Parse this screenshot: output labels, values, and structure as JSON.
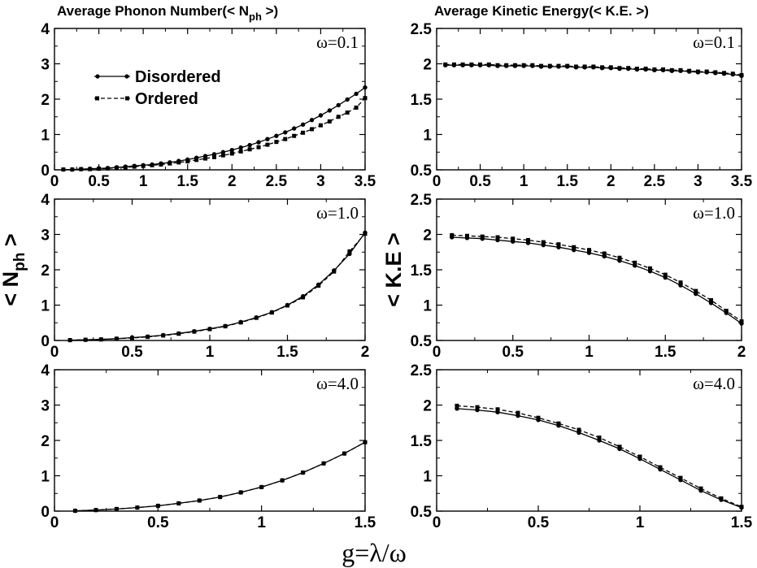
{
  "titles": {
    "left": "Average Phonon Number(< N",
    "left_sub": "ph",
    "left_end": " >)",
    "right": "Average Kinetic Energy(< K.E. >)"
  },
  "axis_labels": {
    "left_y": "< N",
    "left_y_sub": "ph",
    "left_y_end": " >",
    "right_y": "< K.E >",
    "x": "g=λ/ω"
  },
  "legend": {
    "disordered": "Disordered",
    "ordered": "Ordered"
  },
  "chart_data": [
    {
      "id": "nph_w01",
      "type": "line",
      "annotation": "ω=0.1",
      "xlim": [
        0,
        3.5
      ],
      "ylim": [
        0,
        4
      ],
      "xticks": [
        "0",
        "0.5",
        "1",
        "1.5",
        "2",
        "2.5",
        "3",
        "3.5"
      ],
      "yticks": [
        "0",
        "1",
        "2",
        "3",
        "4"
      ],
      "x": [
        0.1,
        0.2,
        0.3,
        0.4,
        0.5,
        0.6,
        0.7,
        0.8,
        0.9,
        1.0,
        1.1,
        1.2,
        1.3,
        1.4,
        1.5,
        1.6,
        1.7,
        1.8,
        1.9,
        2.0,
        2.1,
        2.2,
        2.3,
        2.4,
        2.5,
        2.6,
        2.7,
        2.8,
        2.9,
        3.0,
        3.1,
        3.2,
        3.3,
        3.4,
        3.5
      ],
      "series": [
        {
          "name": "Disordered",
          "values": [
            0.01,
            0.01,
            0.02,
            0.03,
            0.04,
            0.05,
            0.07,
            0.09,
            0.11,
            0.13,
            0.15,
            0.18,
            0.21,
            0.25,
            0.29,
            0.34,
            0.39,
            0.44,
            0.5,
            0.56,
            0.63,
            0.7,
            0.78,
            0.87,
            0.96,
            1.06,
            1.17,
            1.28,
            1.41,
            1.54,
            1.68,
            1.83,
            1.99,
            2.15,
            2.33
          ]
        },
        {
          "name": "Ordered",
          "values": [
            0.01,
            0.01,
            0.02,
            0.02,
            0.03,
            0.04,
            0.06,
            0.07,
            0.09,
            0.11,
            0.13,
            0.15,
            0.18,
            0.21,
            0.24,
            0.28,
            0.32,
            0.36,
            0.41,
            0.46,
            0.52,
            0.58,
            0.64,
            0.71,
            0.79,
            0.87,
            0.96,
            1.05,
            1.15,
            1.26,
            1.37,
            1.5,
            1.62,
            1.76,
            2.03
          ]
        }
      ]
    },
    {
      "id": "ke_w01",
      "type": "line",
      "annotation": "ω=0.1",
      "xlim": [
        0,
        3.5
      ],
      "ylim": [
        0.5,
        2.5
      ],
      "xticks": [
        "0",
        "0.5",
        "1",
        "1.5",
        "2",
        "2.5",
        "3",
        "3.5"
      ],
      "yticks": [
        "0.5",
        "1",
        "1.5",
        "2",
        "2.5"
      ],
      "x": [
        0.1,
        0.2,
        0.3,
        0.4,
        0.5,
        0.6,
        0.7,
        0.8,
        0.9,
        1.0,
        1.1,
        1.2,
        1.3,
        1.4,
        1.5,
        1.6,
        1.7,
        1.8,
        1.9,
        2.0,
        2.1,
        2.2,
        2.3,
        2.4,
        2.5,
        2.6,
        2.7,
        2.8,
        2.9,
        3.0,
        3.1,
        3.2,
        3.3,
        3.4,
        3.5
      ],
      "series": [
        {
          "name": "Disordered",
          "values": [
            1.98,
            1.98,
            1.98,
            1.98,
            1.98,
            1.98,
            1.97,
            1.97,
            1.97,
            1.97,
            1.97,
            1.96,
            1.96,
            1.96,
            1.96,
            1.95,
            1.95,
            1.95,
            1.94,
            1.94,
            1.93,
            1.93,
            1.92,
            1.92,
            1.91,
            1.91,
            1.9,
            1.9,
            1.89,
            1.88,
            1.88,
            1.87,
            1.86,
            1.85,
            1.83
          ]
        },
        {
          "name": "Ordered",
          "values": [
            1.99,
            1.99,
            1.99,
            1.99,
            1.99,
            1.99,
            1.98,
            1.98,
            1.98,
            1.98,
            1.98,
            1.97,
            1.97,
            1.97,
            1.97,
            1.96,
            1.96,
            1.96,
            1.95,
            1.95,
            1.94,
            1.94,
            1.93,
            1.93,
            1.92,
            1.92,
            1.91,
            1.91,
            1.9,
            1.89,
            1.89,
            1.88,
            1.87,
            1.86,
            1.84
          ]
        }
      ]
    },
    {
      "id": "nph_w10",
      "type": "line",
      "annotation": "ω=1.0",
      "xlim": [
        0,
        2
      ],
      "ylim": [
        0,
        4
      ],
      "xticks": [
        "0",
        "0.5",
        "1",
        "1.5",
        "2"
      ],
      "yticks": [
        "0",
        "1",
        "2",
        "3",
        "4"
      ],
      "x": [
        0.1,
        0.2,
        0.3,
        0.4,
        0.5,
        0.6,
        0.7,
        0.8,
        0.9,
        1.0,
        1.1,
        1.2,
        1.3,
        1.4,
        1.5,
        1.6,
        1.7,
        1.8,
        1.9,
        2.0
      ],
      "series": [
        {
          "name": "Disordered",
          "values": [
            0.01,
            0.02,
            0.03,
            0.05,
            0.08,
            0.11,
            0.15,
            0.2,
            0.26,
            0.33,
            0.41,
            0.52,
            0.65,
            0.8,
            1.0,
            1.25,
            1.58,
            1.98,
            2.45,
            3.05
          ]
        },
        {
          "name": "Ordered",
          "values": [
            0.01,
            0.02,
            0.03,
            0.05,
            0.07,
            0.1,
            0.14,
            0.19,
            0.25,
            0.32,
            0.4,
            0.51,
            0.64,
            0.79,
            0.99,
            1.22,
            1.55,
            1.95,
            2.52,
            3.02
          ]
        }
      ]
    },
    {
      "id": "ke_w10",
      "type": "line",
      "annotation": "ω=1.0",
      "xlim": [
        0,
        2
      ],
      "ylim": [
        0.5,
        2.5
      ],
      "xticks": [
        "0",
        "0.5",
        "1",
        "1.5",
        "2"
      ],
      "yticks": [
        "0.5",
        "1",
        "1.5",
        "2",
        "2.5"
      ],
      "x": [
        0.1,
        0.2,
        0.3,
        0.4,
        0.5,
        0.6,
        0.7,
        0.8,
        0.9,
        1.0,
        1.1,
        1.2,
        1.3,
        1.4,
        1.5,
        1.6,
        1.7,
        1.8,
        1.9,
        2.0
      ],
      "series": [
        {
          "name": "Disordered",
          "values": [
            1.96,
            1.95,
            1.94,
            1.92,
            1.9,
            1.88,
            1.85,
            1.82,
            1.78,
            1.74,
            1.69,
            1.63,
            1.56,
            1.48,
            1.39,
            1.28,
            1.16,
            1.03,
            0.89,
            0.74
          ]
        },
        {
          "name": "Ordered",
          "values": [
            1.99,
            1.98,
            1.97,
            1.96,
            1.94,
            1.92,
            1.89,
            1.86,
            1.82,
            1.78,
            1.73,
            1.67,
            1.6,
            1.52,
            1.43,
            1.32,
            1.2,
            1.07,
            0.92,
            0.77
          ]
        }
      ]
    },
    {
      "id": "nph_w40",
      "type": "line",
      "annotation": "ω=4.0",
      "xlim": [
        0,
        1.5
      ],
      "ylim": [
        0,
        4
      ],
      "xticks": [
        "0",
        "0.5",
        "1",
        "1.5"
      ],
      "yticks": [
        "0",
        "1",
        "2",
        "3",
        "4"
      ],
      "x": [
        0.1,
        0.2,
        0.3,
        0.4,
        0.5,
        0.6,
        0.7,
        0.8,
        0.9,
        1.0,
        1.1,
        1.2,
        1.3,
        1.4,
        1.5
      ],
      "series": [
        {
          "name": "Disordered",
          "values": [
            0.01,
            0.03,
            0.06,
            0.1,
            0.15,
            0.22,
            0.3,
            0.4,
            0.53,
            0.68,
            0.87,
            1.09,
            1.35,
            1.63,
            1.95
          ]
        },
        {
          "name": "Ordered",
          "values": [
            0.01,
            0.03,
            0.06,
            0.1,
            0.15,
            0.22,
            0.3,
            0.4,
            0.53,
            0.68,
            0.87,
            1.09,
            1.35,
            1.63,
            1.95
          ]
        }
      ]
    },
    {
      "id": "ke_w40",
      "type": "line",
      "annotation": "ω=4.0",
      "xlim": [
        0,
        1.5
      ],
      "ylim": [
        0.5,
        2.5
      ],
      "xticks": [
        "0",
        "0.5",
        "1",
        "1.5"
      ],
      "yticks": [
        "0.5",
        "1",
        "1.5",
        "2",
        "2.5"
      ],
      "x": [
        0.1,
        0.2,
        0.3,
        0.4,
        0.5,
        0.6,
        0.7,
        0.8,
        0.9,
        1.0,
        1.1,
        1.2,
        1.3,
        1.4,
        1.5
      ],
      "series": [
        {
          "name": "Disordered",
          "values": [
            1.95,
            1.93,
            1.9,
            1.85,
            1.79,
            1.71,
            1.61,
            1.5,
            1.38,
            1.24,
            1.09,
            0.94,
            0.79,
            0.66,
            0.55
          ]
        },
        {
          "name": "Ordered",
          "values": [
            1.99,
            1.97,
            1.94,
            1.89,
            1.82,
            1.74,
            1.65,
            1.54,
            1.41,
            1.27,
            1.12,
            0.97,
            0.82,
            0.68,
            0.56
          ]
        }
      ]
    }
  ]
}
